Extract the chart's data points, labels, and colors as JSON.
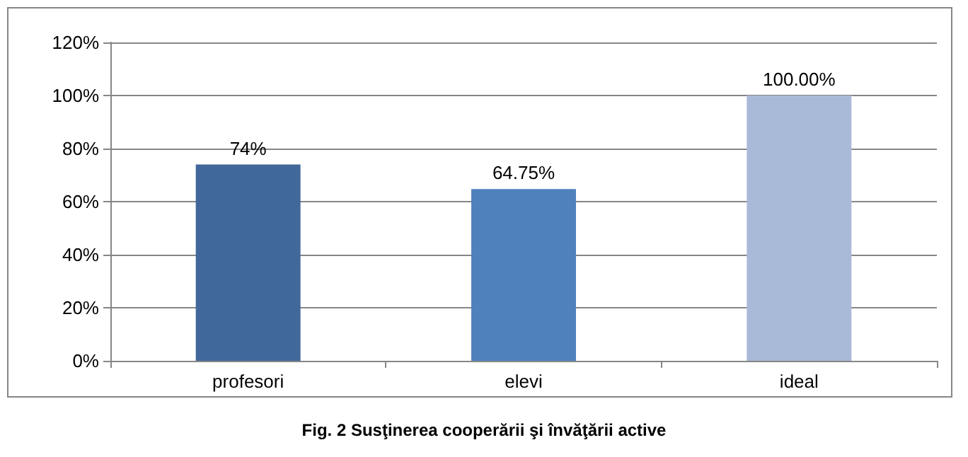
{
  "chart_data": {
    "type": "bar",
    "title": "Fig. 2 Susţinerea cooperării şi învăţării active",
    "categories": [
      "profesori",
      "elevi",
      "ideal"
    ],
    "values": [
      74,
      64.75,
      100
    ],
    "colors": [
      "#41689a",
      "#4f81bd",
      "#a9b9d8"
    ],
    "value_labels": [
      "74%",
      "64.75%",
      "100.00%"
    ],
    "ylim": [
      0,
      120
    ],
    "yticks": [
      {
        "value": 0,
        "label": "0%"
      },
      {
        "value": 20,
        "label": "20%"
      },
      {
        "value": 40,
        "label": "40%"
      },
      {
        "value": 60,
        "label": "60%"
      },
      {
        "value": 80,
        "label": "80%"
      },
      {
        "value": 100,
        "label": "100%"
      },
      {
        "value": 120,
        "label": "120%"
      }
    ],
    "grid": "y"
  }
}
